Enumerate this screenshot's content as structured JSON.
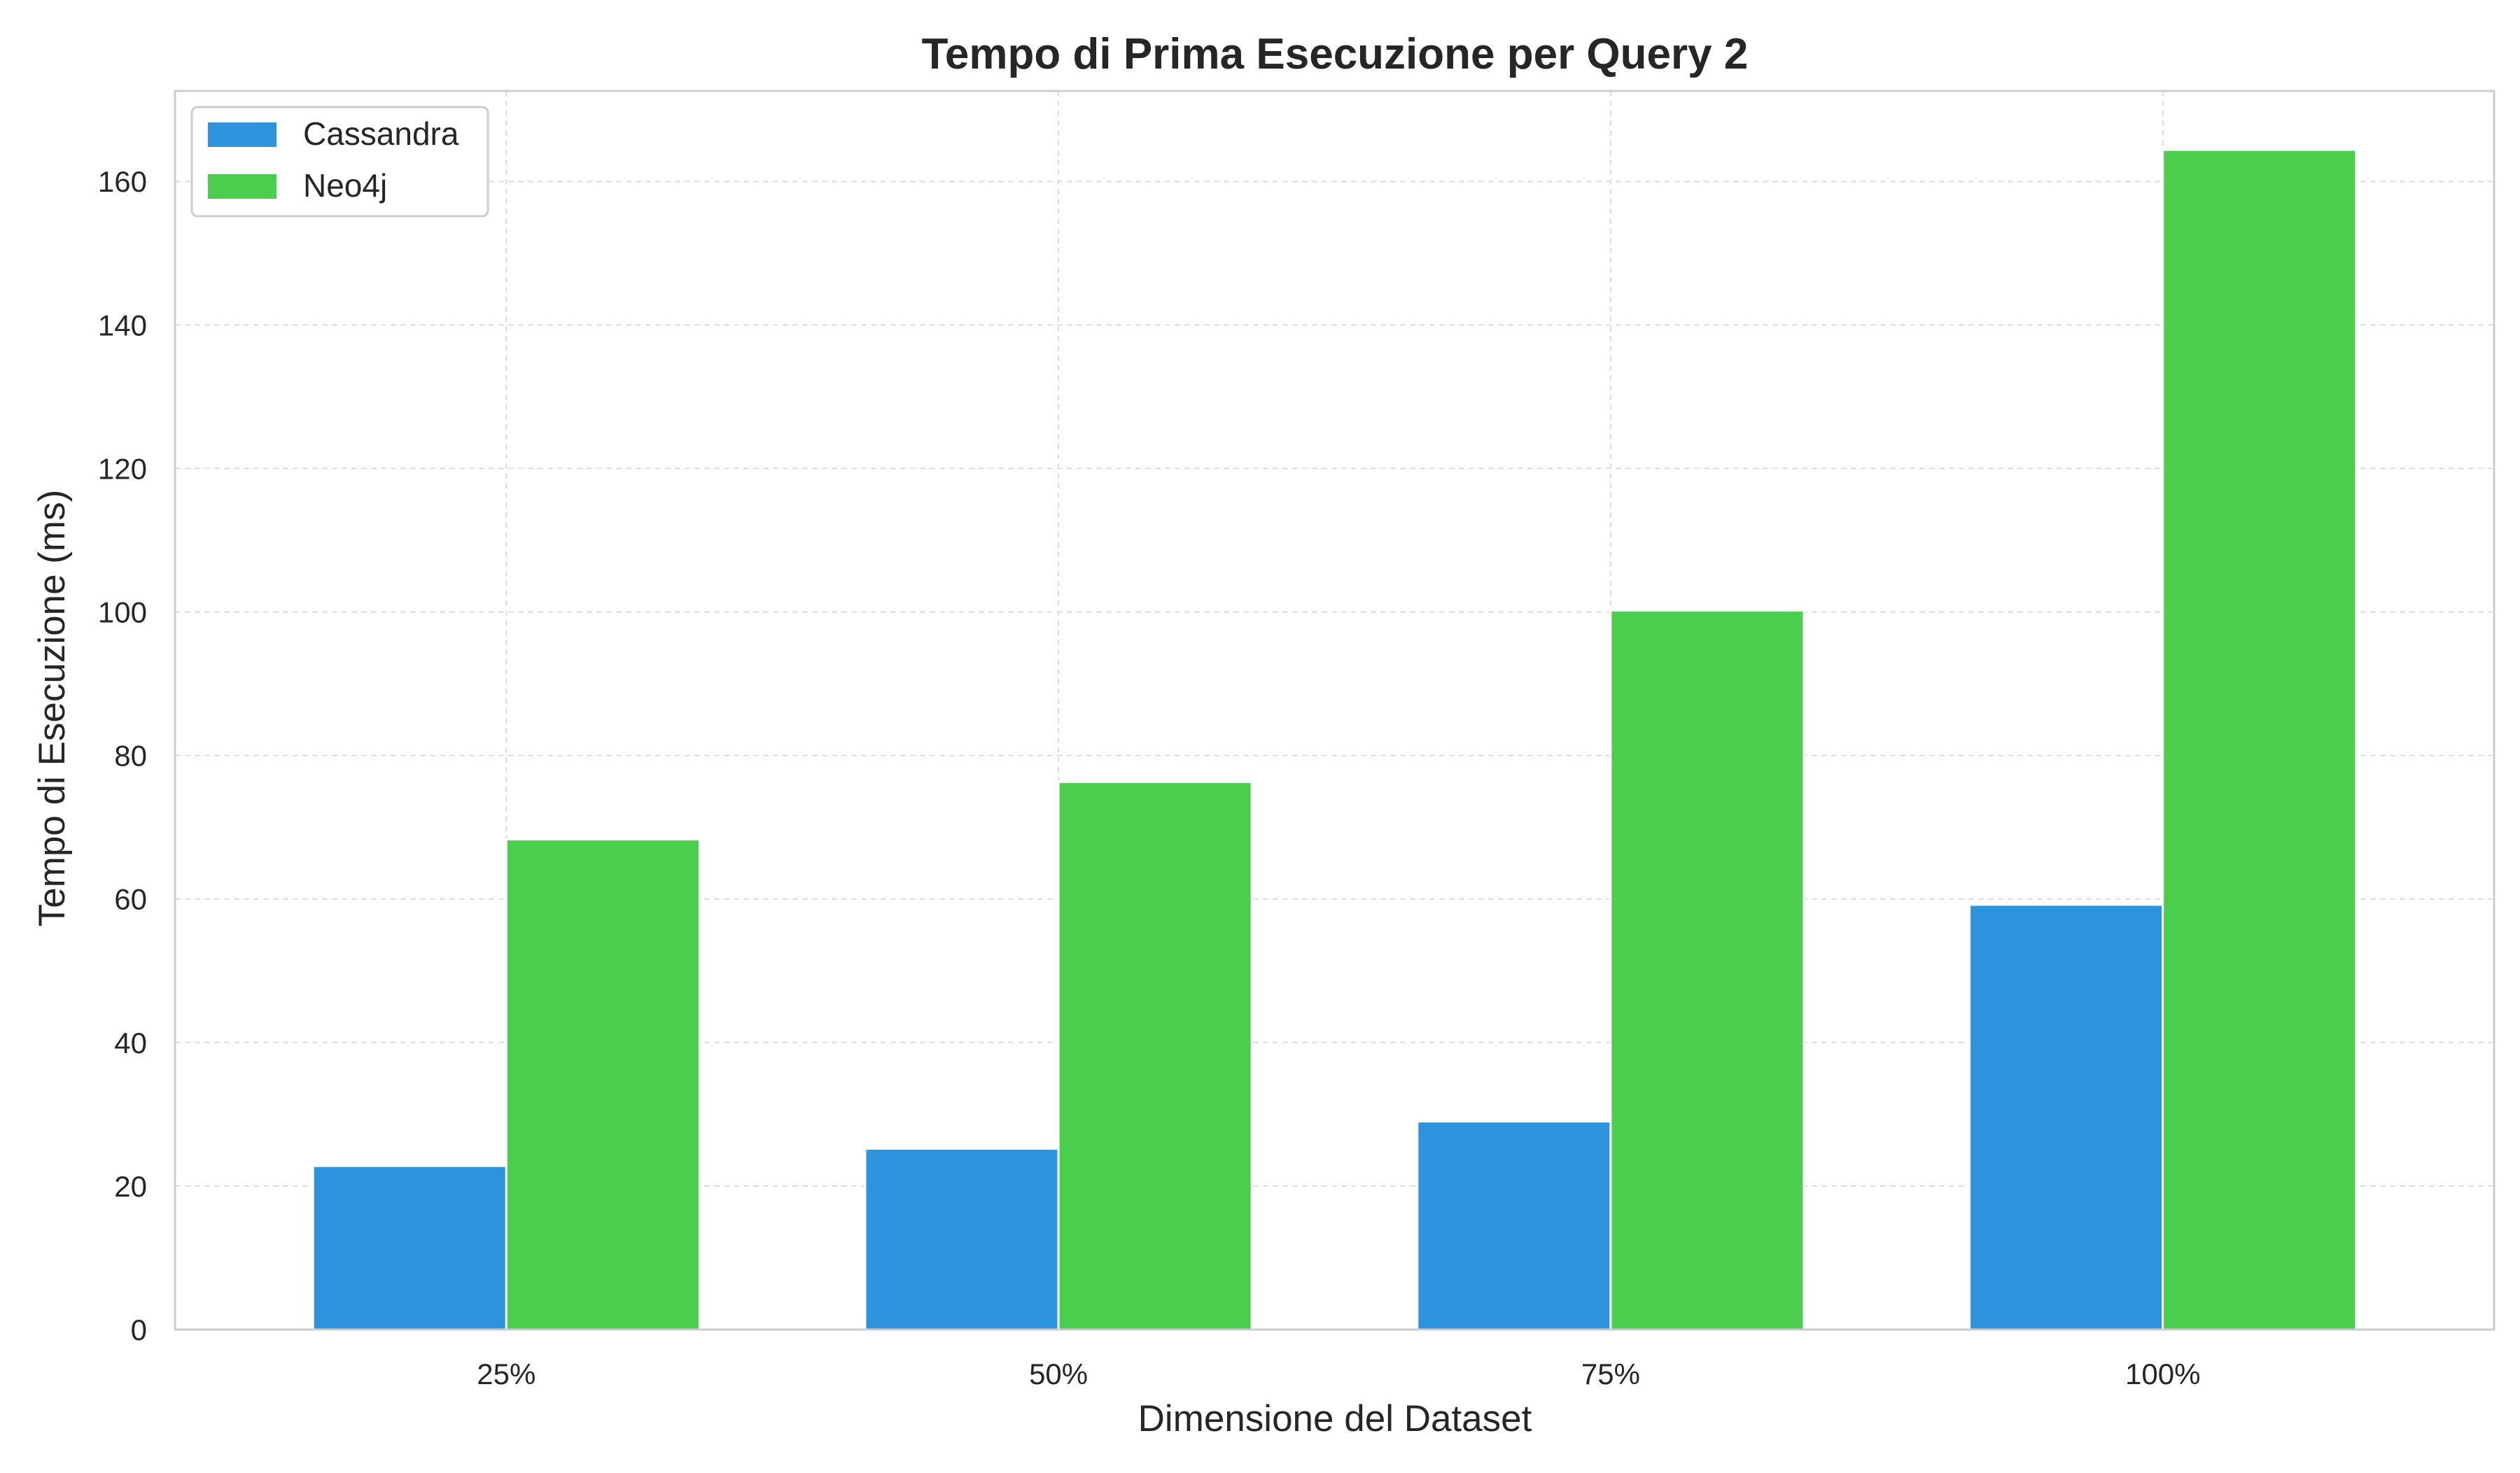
{
  "chart_data": {
    "type": "bar",
    "title": "Tempo di Prima Esecuzione per Query 2",
    "xlabel": "Dimensione del Dataset",
    "ylabel": "Tempo di Esecuzione (ms)",
    "categories": [
      "25%",
      "50%",
      "75%",
      "100%"
    ],
    "series": [
      {
        "name": "Cassandra",
        "color": "#2d93dd",
        "values": [
          22.8,
          25.2,
          29.0,
          59.2
        ]
      },
      {
        "name": "Neo4j",
        "color": "#4bce4d",
        "values": [
          68.3,
          76.3,
          100.2,
          164.4
        ]
      }
    ],
    "ylim": [
      0,
      172.6
    ],
    "yticks": [
      0,
      20,
      40,
      60,
      80,
      100,
      120,
      140,
      160
    ],
    "grid": true,
    "legend_position": "top-left"
  }
}
